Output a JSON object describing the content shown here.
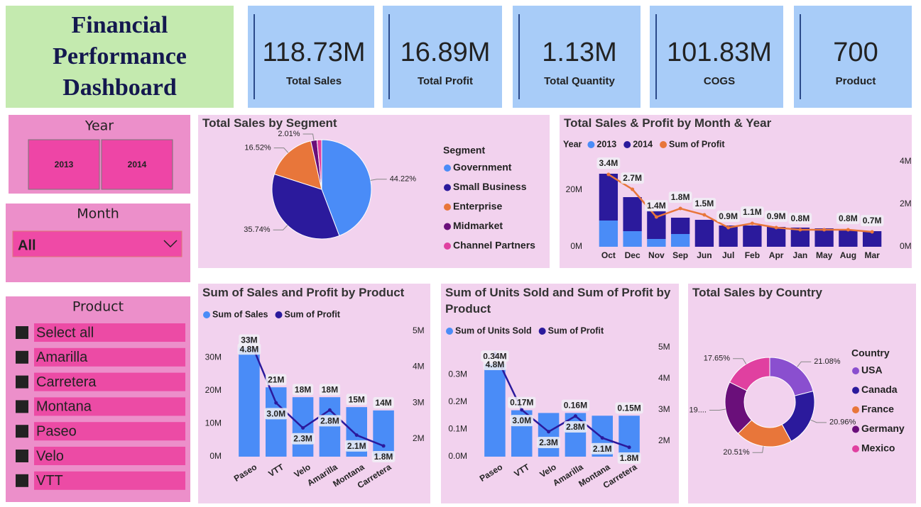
{
  "title": "Financial Performance Dashboard",
  "kpis": [
    {
      "value": "118.73M",
      "label": "Total Sales"
    },
    {
      "value": "16.89M",
      "label": "Total  Profit"
    },
    {
      "value": "1.13M",
      "label": "Total Quantity"
    },
    {
      "value": "101.83M",
      "label": "COGS"
    },
    {
      "value": "700",
      "label": "Product"
    }
  ],
  "year_slicer": {
    "title": "Year",
    "options": [
      "2013",
      "2014"
    ]
  },
  "month_slicer": {
    "title": "Month",
    "selected": "All"
  },
  "product_slicer": {
    "title": "Product",
    "options": [
      "Select all",
      "Amarilla",
      "Carretera",
      "Montana",
      "Paseo",
      "Velo",
      "VTT"
    ]
  },
  "chart_data": [
    {
      "type": "pie",
      "title": "Total Sales by Segment",
      "legend_title": "Segment",
      "categories": [
        "Government",
        "Small Business",
        "Enterprise",
        "Midmarket",
        "Channel Partners"
      ],
      "values": [
        44.22,
        35.74,
        16.52,
        2.01,
        1.51
      ],
      "value_labels": [
        "44.22%",
        "35.74%",
        "16.52%",
        "2.01%",
        null
      ],
      "colors": [
        "#4a8cf7",
        "#2b1a9c",
        "#e8763a",
        "#6a0f7a",
        "#e040a0"
      ]
    },
    {
      "type": "combo",
      "title": "Total Sales & Profit by Month & Year",
      "legend_title": "Year",
      "stacked": true,
      "categories": [
        "Oct",
        "Dec",
        "Nov",
        "Sep",
        "Jun",
        "Jul",
        "Feb",
        "Apr",
        "Jan",
        "May",
        "Aug",
        "Mar"
      ],
      "series": [
        {
          "name": "2013",
          "color": "#4a8cf7",
          "values": [
            9.25,
            5.5,
            2.75,
            4.5,
            null,
            null,
            null,
            null,
            null,
            null,
            null,
            null
          ]
        },
        {
          "name": "2014",
          "color": "#2b1a9c",
          "values": [
            16.5,
            12,
            10,
            5.75,
            9.5,
            7.5,
            7.5,
            7,
            6.75,
            6.5,
            5.75,
            5.5
          ]
        },
        {
          "name": "Sum of  Profit",
          "color": "#e8763a",
          "axis": "y2",
          "values": [
            3.4,
            2.7,
            1.4,
            1.8,
            1.5,
            0.9,
            1.1,
            0.9,
            0.8,
            0.8,
            0.8,
            0.7
          ],
          "value_labels": [
            "3.4M",
            "2.7M",
            "1.4M",
            "1.8M",
            "1.5M",
            "0.9M",
            "1.1M",
            "0.9M",
            "0.8M",
            null,
            "0.8M",
            "0.7M"
          ]
        }
      ],
      "ylim": [
        0,
        30
      ],
      "yticks": [
        {
          "value": 0,
          "label": "0M"
        },
        {
          "value": 20,
          "label": "20M"
        }
      ],
      "y2lim": [
        0,
        4
      ],
      "y2ticks": [
        {
          "value": 0,
          "label": "0M"
        },
        {
          "value": 2,
          "label": "2M"
        },
        {
          "value": 4,
          "label": "4M"
        }
      ],
      "grid": false
    },
    {
      "type": "combo",
      "title": "Sum of Sales and Profit by Product",
      "stacked": false,
      "categories": [
        "Paseo",
        "VTT",
        "Velo",
        "Amarilla",
        "Montana",
        "Carretera"
      ],
      "series": [
        {
          "name": "Sum of  Sales",
          "color": "#4a8cf7",
          "values": [
            33,
            21,
            18,
            18,
            15,
            14
          ],
          "value_labels": [
            "33M",
            "21M",
            "18M",
            "18M",
            "15M",
            "14M"
          ]
        },
        {
          "name": "Sum of  Profit",
          "color": "#2b1a9c",
          "axis": "y2",
          "values": [
            4.8,
            3.0,
            2.3,
            2.8,
            2.1,
            1.8
          ],
          "value_labels": [
            "4.8M",
            "3.0M",
            "2.3M",
            "2.8M",
            "2.1M",
            "1.8M"
          ]
        }
      ],
      "ylim": [
        0,
        38
      ],
      "yticks": [
        {
          "value": 0,
          "label": "0M"
        },
        {
          "value": 10,
          "label": "10M"
        },
        {
          "value": 20,
          "label": "20M"
        },
        {
          "value": 30,
          "label": "30M"
        }
      ],
      "y2lim": [
        1.5,
        5
      ],
      "y2ticks": [
        {
          "value": 2,
          "label": "2M"
        },
        {
          "value": 3,
          "label": "3M"
        },
        {
          "value": 4,
          "label": "4M"
        },
        {
          "value": 5,
          "label": "5M"
        }
      ],
      "grid": false
    },
    {
      "type": "combo",
      "title": "Sum of Units Sold and Sum of Profit by Product",
      "stacked": false,
      "categories": [
        "Paseo",
        "VTT",
        "Velo",
        "Amarilla",
        "Montana",
        "Carretera"
      ],
      "series": [
        {
          "name": "Sum of  Units Sold",
          "color": "#4a8cf7",
          "values": [
            0.34,
            0.17,
            0.16,
            0.16,
            0.15,
            0.15
          ],
          "value_labels": [
            "0.34M",
            "0.17M",
            null,
            "0.16M",
            null,
            "0.15M"
          ]
        },
        {
          "name": "Sum of  Profit",
          "color": "#2b1a9c",
          "axis": "y2",
          "values": [
            4.8,
            3.0,
            2.3,
            2.8,
            2.1,
            1.8
          ],
          "value_labels": [
            "4.8M",
            "3.0M",
            "2.3M",
            "2.8M",
            "2.1M",
            "1.8M"
          ]
        }
      ],
      "ylim": [
        0,
        0.4
      ],
      "yticks": [
        {
          "value": 0,
          "label": "0.0M"
        },
        {
          "value": 0.1,
          "label": "0.1M"
        },
        {
          "value": 0.2,
          "label": "0.2M"
        },
        {
          "value": 0.3,
          "label": "0.3M"
        }
      ],
      "y2lim": [
        1.5,
        5
      ],
      "y2ticks": [
        {
          "value": 2,
          "label": "2M"
        },
        {
          "value": 3,
          "label": "3M"
        },
        {
          "value": 4,
          "label": "4M"
        },
        {
          "value": 5,
          "label": "5M"
        }
      ],
      "grid": false
    },
    {
      "type": "donut",
      "title": "Total Sales by Country",
      "legend_title": "Country",
      "categories": [
        "USA",
        "Canada",
        "France",
        "Germany",
        "Mexico"
      ],
      "values": [
        21.08,
        20.96,
        20.51,
        19.8,
        17.65
      ],
      "value_labels": [
        "21.08%",
        "20.96%",
        "20.51%",
        "19....",
        "17.65%"
      ],
      "colors": [
        "#8a4fcf",
        "#2b1a9c",
        "#e8763a",
        "#6a0f7a",
        "#e040a0"
      ]
    }
  ]
}
